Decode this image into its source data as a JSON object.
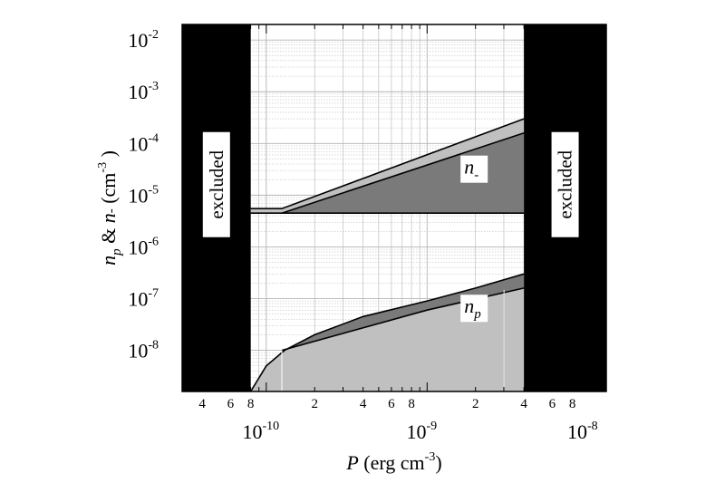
{
  "chart_data": {
    "type": "area",
    "x_scale": "log",
    "y_scale": "log",
    "xlim": [
      3e-11,
      1.3e-08
    ],
    "ylim": [
      1.6e-09,
      0.02
    ],
    "grid": true,
    "xlabel": {
      "var": "P",
      "unit": "(erg cm",
      "exp": "-3",
      "close": ")"
    },
    "ylabel": {
      "var1": "n",
      "sub1": "p",
      "amp": "&",
      "var2": "n",
      "sub2": "-",
      "unit": "(cm",
      "exp": "-3",
      "close": ")"
    },
    "x_major_ticks": [
      {
        "value": 1e-10,
        "base": "10",
        "exp": "-10"
      },
      {
        "value": 1e-09,
        "base": "10",
        "exp": "-9"
      },
      {
        "value": 1e-08,
        "base": "10",
        "exp": "-8"
      }
    ],
    "x_minor_ticks": [
      {
        "value": 4e-11,
        "label": "4"
      },
      {
        "value": 6e-11,
        "label": "6"
      },
      {
        "value": 8e-11,
        "label": "8"
      },
      {
        "value": 2e-10,
        "label": "2"
      },
      {
        "value": 4e-10,
        "label": "4"
      },
      {
        "value": 6e-10,
        "label": "6"
      },
      {
        "value": 8e-10,
        "label": "8"
      },
      {
        "value": 2e-09,
        "label": "2"
      },
      {
        "value": 4e-09,
        "label": "4"
      },
      {
        "value": 6e-09,
        "label": "6"
      },
      {
        "value": 8e-09,
        "label": "8"
      }
    ],
    "y_major_ticks": [
      {
        "value": 1e-08,
        "base": "10",
        "exp": "-8"
      },
      {
        "value": 1e-07,
        "base": "10",
        "exp": "-7"
      },
      {
        "value": 1e-06,
        "base": "10",
        "exp": "-6"
      },
      {
        "value": 1e-05,
        "base": "10",
        "exp": "-5"
      },
      {
        "value": 0.0001,
        "base": "10",
        "exp": "-4"
      },
      {
        "value": 0.001,
        "base": "10",
        "exp": "-3"
      },
      {
        "value": 0.01,
        "base": "10",
        "exp": "-2"
      }
    ],
    "excluded_regions": [
      {
        "x_range": [
          3e-11,
          8e-11
        ],
        "label": "excluded"
      },
      {
        "x_range": [
          4e-09,
          1.3e-08
        ],
        "label": "excluded"
      }
    ],
    "n_minus": {
      "label": "n",
      "sub": "-",
      "upper": [
        [
          8e-11,
          5.5e-06
        ],
        [
          1.25e-10,
          5.5e-06
        ],
        [
          4e-09,
          0.0003
        ]
      ],
      "lower": [
        [
          1.25e-10,
          4.5e-06
        ],
        [
          4e-09,
          0.00016
        ]
      ],
      "floor": 4.5e-06
    },
    "n_p": {
      "label": "n",
      "sub": "p",
      "upper": [
        [
          8e-11,
          1.6e-09
        ],
        [
          1e-10,
          5e-09
        ],
        [
          1.3e-10,
          1e-08
        ],
        [
          2e-10,
          2e-08
        ],
        [
          4e-10,
          4.5e-08
        ],
        [
          1e-09,
          9e-08
        ],
        [
          2e-09,
          1.6e-07
        ],
        [
          4e-09,
          3e-07
        ]
      ],
      "lower": [
        [
          1.25e-10,
          1e-08
        ],
        [
          1e-09,
          6e-08
        ],
        [
          4e-09,
          1.6e-07
        ]
      ]
    },
    "colors": {
      "excluded": "#000000",
      "light_fill": "#c0c0c0",
      "dark_fill": "#7a7a7a",
      "grid": "#b4b4b4"
    }
  }
}
